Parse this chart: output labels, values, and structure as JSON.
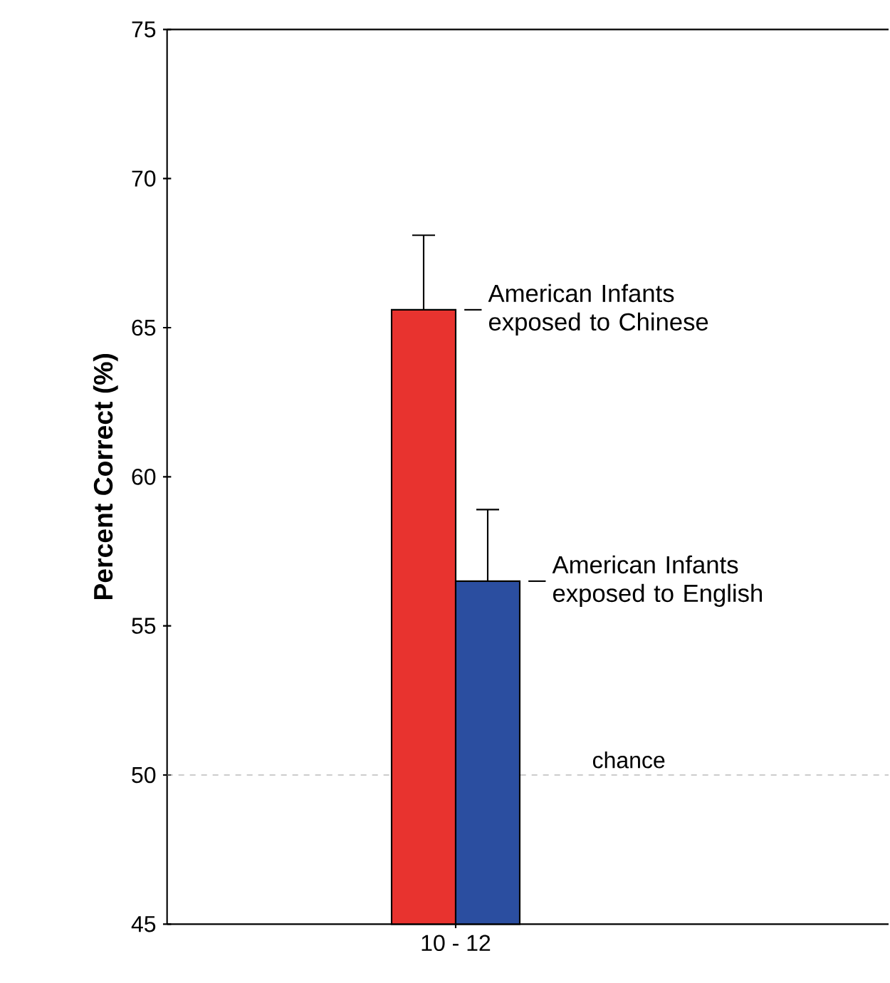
{
  "chart_data": {
    "type": "bar",
    "ylabel": "Percent Correct (%)",
    "categories": [
      "10 - 12"
    ],
    "series": [
      {
        "name": "American Infants exposed to Chinese",
        "color": "#e8332f",
        "values": [
          65.6
        ],
        "errors": [
          2.5
        ]
      },
      {
        "name": "American Infants exposed to English",
        "color": "#2b4ea0",
        "values": [
          56.5
        ],
        "errors": [
          2.4
        ]
      }
    ],
    "ylim": [
      45,
      75
    ],
    "yticks": [
      45,
      50,
      55,
      60,
      65,
      70,
      75
    ],
    "ref_lines": [
      {
        "axis": "y",
        "value": 50,
        "label": "chance",
        "color": "#999999",
        "line_style": "dashed"
      }
    ],
    "grid": false,
    "legend": "right"
  }
}
